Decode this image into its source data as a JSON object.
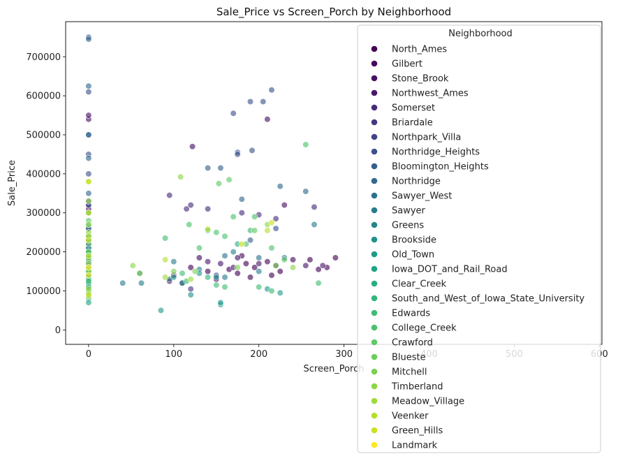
{
  "chart_data": {
    "type": "scatter",
    "title": "Sale_Price vs Screen_Porch by Neighborhood",
    "xlabel": "Screen_Porch",
    "ylabel": "Sale_Price",
    "xlim": [
      -27,
      603
    ],
    "ylim": [
      -37000,
      790000
    ],
    "xticks": [
      0,
      100,
      200,
      300,
      400,
      500,
      600
    ],
    "xtick_labels": [
      "0",
      "100",
      "200",
      "300",
      "400",
      "500",
      "600"
    ],
    "yticks": [
      0,
      100000,
      200000,
      300000,
      400000,
      500000,
      600000,
      700000
    ],
    "ytick_labels": [
      "0",
      "100000",
      "200000",
      "300000",
      "400000",
      "500000",
      "600000",
      "700000"
    ],
    "grid": false,
    "legend_title": "Neighborhood",
    "legend_placement": "upper-right",
    "series": [
      {
        "name": "North_Ames",
        "color": "#440154",
        "points": [
          [
            0,
            130000
          ],
          [
            0,
            140000
          ],
          [
            0,
            125000
          ],
          [
            0,
            150000
          ],
          [
            0,
            118000
          ],
          [
            0,
            160000
          ],
          [
            0,
            110000
          ],
          [
            0,
            175000
          ],
          [
            100,
            140000
          ],
          [
            110,
            120000
          ],
          [
            120,
            160000
          ],
          [
            140,
            150000
          ],
          [
            150,
            130000
          ],
          [
            165,
            155000
          ],
          [
            175,
            145000
          ],
          [
            190,
            135000
          ],
          [
            195,
            160000
          ],
          [
            215,
            140000
          ],
          [
            225,
            150000
          ],
          [
            260,
            180000
          ],
          [
            270,
            155000
          ],
          [
            280,
            160000
          ],
          [
            290,
            185000
          ],
          [
            95,
            125000
          ],
          [
            185,
            170000
          ]
        ]
      },
      {
        "name": "Gilbert",
        "color": "#46085c",
        "points": [
          [
            0,
            180000
          ],
          [
            0,
            190000
          ],
          [
            0,
            200000
          ],
          [
            0,
            175000
          ],
          [
            130,
            185000
          ],
          [
            180,
            190000
          ],
          [
            210,
            175000
          ],
          [
            240,
            180000
          ]
        ]
      },
      {
        "name": "Stone_Brook",
        "color": "#471063",
        "points": [
          [
            0,
            310000
          ],
          [
            0,
            320000
          ],
          [
            0,
            540000
          ],
          [
            0,
            550000
          ],
          [
            122,
            470000
          ],
          [
            210,
            540000
          ],
          [
            230,
            320000
          ]
        ]
      },
      {
        "name": "Northwest_Ames",
        "color": "#48186a",
        "points": [
          [
            0,
            165000
          ],
          [
            0,
            180000
          ],
          [
            0,
            195000
          ],
          [
            0,
            170000
          ],
          [
            140,
            175000
          ],
          [
            155,
            170000
          ],
          [
            170,
            160000
          ],
          [
            200,
            170000
          ],
          [
            220,
            165000
          ],
          [
            255,
            165000
          ],
          [
            275,
            165000
          ],
          [
            175,
            185000
          ]
        ]
      },
      {
        "name": "Somerset",
        "color": "#472c7a",
        "points": [
          [
            0,
            200000
          ],
          [
            0,
            220000
          ],
          [
            0,
            240000
          ],
          [
            0,
            260000
          ],
          [
            0,
            330000
          ],
          [
            95,
            345000
          ],
          [
            115,
            310000
          ],
          [
            120,
            320000
          ],
          [
            140,
            310000
          ],
          [
            180,
            300000
          ],
          [
            200,
            295000
          ],
          [
            220,
            285000
          ],
          [
            265,
            315000
          ]
        ]
      },
      {
        "name": "Briardale",
        "color": "#453781",
        "points": [
          [
            0,
            105000
          ],
          [
            0,
            120000
          ],
          [
            0,
            115000
          ],
          [
            120,
            105000
          ]
        ]
      },
      {
        "name": "Northpark_Villa",
        "color": "#414487",
        "points": [
          [
            0,
            135000
          ],
          [
            0,
            140000
          ],
          [
            0,
            150000
          ],
          [
            150,
            140000
          ]
        ]
      },
      {
        "name": "Northridge_Heights",
        "color": "#3b528b",
        "points": [
          [
            0,
            320000
          ],
          [
            0,
            400000
          ],
          [
            0,
            450000
          ],
          [
            0,
            500000
          ],
          [
            0,
            610000
          ],
          [
            0,
            750000
          ],
          [
            170,
            555000
          ],
          [
            190,
            585000
          ],
          [
            205,
            585000
          ],
          [
            215,
            615000
          ],
          [
            175,
            455000
          ],
          [
            192,
            460000
          ],
          [
            175,
            450000
          ],
          [
            220,
            260000
          ]
        ]
      },
      {
        "name": "Bloomington_Heights",
        "color": "#355f8d",
        "points": [
          [
            0,
            190000
          ],
          [
            0,
            210000
          ],
          [
            0,
            230000
          ],
          [
            140,
            415000
          ],
          [
            155,
            415000
          ],
          [
            190,
            230000
          ]
        ]
      },
      {
        "name": "Northridge",
        "color": "#31688e",
        "points": [
          [
            0,
            260000
          ],
          [
            0,
            300000
          ],
          [
            0,
            350000
          ],
          [
            0,
            440000
          ],
          [
            0,
            500000
          ],
          [
            0,
            625000
          ],
          [
            0,
            745000
          ],
          [
            180,
            335000
          ],
          [
            225,
            368000
          ],
          [
            255,
            355000
          ]
        ]
      },
      {
        "name": "Sawyer_West",
        "color": "#2c728e",
        "points": [
          [
            0,
            160000
          ],
          [
            0,
            180000
          ],
          [
            0,
            190000
          ],
          [
            0,
            200000
          ],
          [
            160,
            190000
          ],
          [
            200,
            185000
          ],
          [
            230,
            185000
          ]
        ]
      },
      {
        "name": "Sawyer",
        "color": "#287c8e",
        "points": [
          [
            0,
            125000
          ],
          [
            0,
            135000
          ],
          [
            0,
            145000
          ],
          [
            40,
            120000
          ],
          [
            60,
            145000
          ],
          [
            62,
            120000
          ],
          [
            95,
            130000
          ],
          [
            100,
            175000
          ],
          [
            130,
            155000
          ],
          [
            160,
            135000
          ],
          [
            200,
            150000
          ],
          [
            265,
            270000
          ]
        ]
      },
      {
        "name": "Greens",
        "color": "#25858e",
        "points": [
          [
            0,
            190000
          ],
          [
            0,
            210000
          ],
          [
            170,
            200000
          ]
        ]
      },
      {
        "name": "Brookside",
        "color": "#21918c",
        "points": [
          [
            0,
            110000
          ],
          [
            0,
            120000
          ],
          [
            0,
            130000
          ],
          [
            0,
            100000
          ],
          [
            110,
            120000
          ],
          [
            120,
            90000
          ],
          [
            150,
            135000
          ]
        ]
      },
      {
        "name": "Old_Town",
        "color": "#1e9b8a",
        "points": [
          [
            0,
            80000
          ],
          [
            0,
            100000
          ],
          [
            0,
            120000
          ],
          [
            0,
            135000
          ],
          [
            0,
            150000
          ],
          [
            85,
            50000
          ],
          [
            100,
            135000
          ],
          [
            130,
            145000
          ],
          [
            155,
            65000
          ],
          [
            155,
            70000
          ],
          [
            210,
            105000
          ],
          [
            225,
            95000
          ]
        ]
      },
      {
        "name": "Iowa_DOT_and_Rail_Road",
        "color": "#20a486",
        "points": [
          [
            0,
            70000
          ],
          [
            0,
            90000
          ],
          [
            0,
            100000
          ]
        ]
      },
      {
        "name": "Clear_Creek",
        "color": "#28ae80",
        "points": [
          [
            0,
            200000
          ],
          [
            0,
            240000
          ],
          [
            0,
            270000
          ],
          [
            175,
            220000
          ]
        ]
      },
      {
        "name": "South_and_West_of_Iowa_State_University",
        "color": "#32b67a",
        "points": [
          [
            0,
            120000
          ],
          [
            0,
            130000
          ],
          [
            0,
            140000
          ],
          [
            140,
            135000
          ]
        ]
      },
      {
        "name": "Edwards",
        "color": "#3fbc73",
        "points": [
          [
            0,
            110000
          ],
          [
            0,
            125000
          ],
          [
            0,
            140000
          ],
          [
            0,
            160000
          ],
          [
            90,
            235000
          ],
          [
            110,
            145000
          ],
          [
            115,
            125000
          ],
          [
            140,
            255000
          ],
          [
            150,
            115000
          ],
          [
            160,
            110000
          ],
          [
            190,
            255000
          ],
          [
            200,
            110000
          ],
          [
            270,
            120000
          ],
          [
            215,
            100000
          ]
        ]
      },
      {
        "name": "College_Creek",
        "color": "#4ac16d",
        "points": [
          [
            0,
            180000
          ],
          [
            0,
            200000
          ],
          [
            0,
            220000
          ],
          [
            0,
            240000
          ],
          [
            118,
            270000
          ],
          [
            130,
            210000
          ],
          [
            150,
            250000
          ],
          [
            160,
            240000
          ],
          [
            170,
            290000
          ],
          [
            185,
            220000
          ],
          [
            195,
            290000
          ],
          [
            215,
            210000
          ],
          [
            255,
            475000
          ]
        ]
      },
      {
        "name": "Crawford",
        "color": "#5ec962",
        "points": [
          [
            0,
            150000
          ],
          [
            0,
            200000
          ],
          [
            0,
            230000
          ],
          [
            0,
            280000
          ],
          [
            153,
            375000
          ],
          [
            165,
            385000
          ],
          [
            195,
            255000
          ],
          [
            230,
            180000
          ]
        ]
      },
      {
        "name": "Blueste",
        "color": "#6ccd5a",
        "points": [
          [
            0,
            150000
          ],
          [
            0,
            165000
          ],
          [
            0,
            190000
          ]
        ]
      },
      {
        "name": "Mitchell",
        "color": "#7ad151",
        "points": [
          [
            0,
            150000
          ],
          [
            0,
            160000
          ],
          [
            0,
            170000
          ],
          [
            0,
            185000
          ],
          [
            60,
            145000
          ],
          [
            100,
            150000
          ],
          [
            125,
            150000
          ],
          [
            175,
            160000
          ],
          [
            220,
            165000
          ]
        ]
      },
      {
        "name": "Timberland",
        "color": "#8bd646",
        "points": [
          [
            0,
            250000
          ],
          [
            0,
            270000
          ],
          [
            0,
            300000
          ],
          [
            0,
            330000
          ],
          [
            52,
            165000
          ],
          [
            108,
            392000
          ],
          [
            210,
            270000
          ],
          [
            240,
            160000
          ]
        ]
      },
      {
        "name": "Meadow_Village",
        "color": "#9fda3a",
        "points": [
          [
            0,
            85000
          ],
          [
            0,
            95000
          ],
          [
            0,
            105000
          ],
          [
            90,
            135000
          ],
          [
            120,
            130000
          ]
        ]
      },
      {
        "name": "Veenker",
        "color": "#b5de2b",
        "points": [
          [
            0,
            190000
          ],
          [
            0,
            240000
          ],
          [
            0,
            300000
          ],
          [
            0,
            380000
          ],
          [
            90,
            180000
          ],
          [
            140,
            258000
          ],
          [
            210,
            255000
          ]
        ]
      },
      {
        "name": "Green_Hills",
        "color": "#cae11f",
        "points": [
          [
            0,
            90000
          ],
          [
            0,
            230000
          ],
          [
            0,
            380000
          ],
          [
            180,
            220000
          ],
          [
            215,
            275000
          ]
        ]
      },
      {
        "name": "Landmark",
        "color": "#fde725",
        "points": [
          [
            0,
            140000
          ],
          [
            0,
            160000
          ]
        ]
      }
    ]
  }
}
